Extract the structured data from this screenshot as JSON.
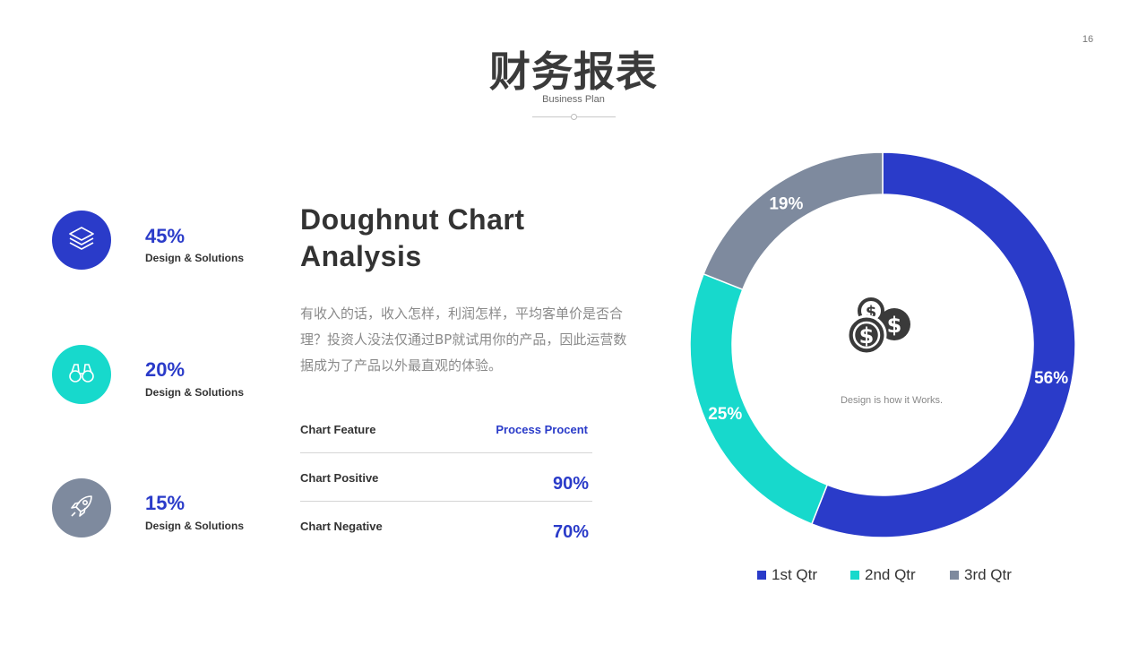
{
  "page_number": "16",
  "title": "财务报表",
  "subtitle": "Business Plan",
  "stats": [
    {
      "value": "45%",
      "label": "Design & Solutions",
      "icon": "layers-icon",
      "color": "#2a3bc9"
    },
    {
      "value": "20%",
      "label": "Design & Solutions",
      "icon": "binoculars-icon",
      "color": "#17d9cc"
    },
    {
      "value": "15%",
      "label": "Design & Solutions",
      "icon": "rocket-icon",
      "color": "#7e8a9e"
    }
  ],
  "heading_line1": "Doughnut Chart",
  "heading_line2": "Analysis",
  "description": "有收入的话，收入怎样，利润怎样，平均客单价是否合理？投资人没法仅通过BP就试用你的产品，因此运营数据成为了产品以外最直观的体验。",
  "table": {
    "header_left": "Chart Feature",
    "header_right": "Process  Procent",
    "rows": [
      {
        "label": "Chart Positive",
        "value": "90%"
      },
      {
        "label": "Chart Negative",
        "value": "70%"
      }
    ]
  },
  "chart_data": {
    "type": "pie",
    "variant": "doughnut",
    "categories": [
      "1st Qtr",
      "2nd Qtr",
      "3rd Qtr"
    ],
    "values": [
      56,
      25,
      19
    ],
    "labels": [
      "56%",
      "25%",
      "19%"
    ],
    "colors": [
      "#2a3bc9",
      "#17d9cc",
      "#7e8a9e"
    ],
    "center_text": "Design is how it Works.",
    "center_icon": "dollar-coins-icon",
    "legend_position": "bottom"
  }
}
